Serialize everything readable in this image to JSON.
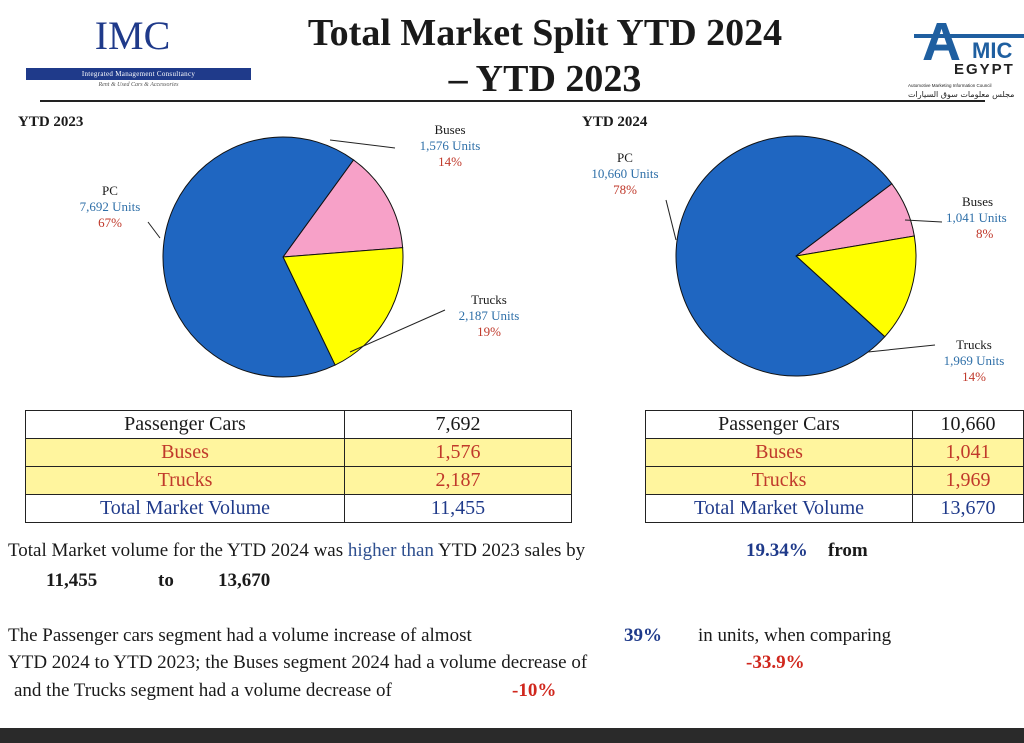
{
  "logo_imc": {
    "name": "IMC",
    "bar_text": "Integrated Management Consultancy",
    "tagline": "Rent & Used Cars & Accessories"
  },
  "logo_amic": {
    "letter": "A",
    "top": "MIC",
    "bottom": "EGYPT",
    "line1": "Automotive Marketing Information Council",
    "line2": "مجلس معلومات سوق السيارات",
    "color": "#1f5fa0"
  },
  "title": {
    "line1": "Total Market Split YTD 2024",
    "line2": "– YTD 2023"
  },
  "colors": {
    "pc": "#1f66c1",
    "buses": "#f7a1c8",
    "trucks": "#ffff00"
  },
  "chart_data": [
    {
      "type": "pie",
      "title": "YTD 2023",
      "slices": [
        {
          "category": "PC",
          "units_label": "7,692 Units",
          "value": 7692,
          "pct": "67%"
        },
        {
          "category": "Buses",
          "units_label": "1,576 Units",
          "value": 1576,
          "pct": "14%"
        },
        {
          "category": "Trucks",
          "units_label": "2,187 Units",
          "value": 2187,
          "pct": "19%"
        }
      ]
    },
    {
      "type": "pie",
      "title": "YTD 2024",
      "slices": [
        {
          "category": "PC",
          "units_label": "10,660 Units",
          "value": 10660,
          "pct": "78%"
        },
        {
          "category": "Buses",
          "units_label": "1,041 Units",
          "value": 1041,
          "pct": "8%"
        },
        {
          "category": "Trucks",
          "units_label": "1,969 Units",
          "value": 1969,
          "pct": "14%"
        }
      ]
    },
    {
      "type": "table",
      "rows": [
        {
          "label": "Passenger Cars",
          "value": "7,692"
        },
        {
          "label": "Buses",
          "value": "1,576"
        },
        {
          "label": "Trucks",
          "value": "2,187"
        },
        {
          "label": "Total Market Volume",
          "value": "11,455"
        }
      ]
    },
    {
      "type": "table",
      "rows": [
        {
          "label": "Passenger Cars",
          "value": "10,660"
        },
        {
          "label": "Buses",
          "value": "1,041"
        },
        {
          "label": "Trucks",
          "value": "1,969"
        },
        {
          "label": "Total Market Volume",
          "value": "13,670"
        }
      ]
    }
  ],
  "summary": {
    "line1_a": "Total Market volume for the YTD 2024 was ",
    "line1_b": "higher than",
    "line1_c": " YTD 2023 sales by",
    "line1_pct": "19.34%",
    "line1_from": "from",
    "from_value": "11,455",
    "to_word": "to",
    "to_value": "13,670",
    "p2_a": "The Passenger cars segment had a volume increase of almost",
    "p2_pc_pct": "39%",
    "p2_b": "in units, when comparing",
    "p2_c": "YTD 2024 to YTD 2023; the Buses segment 2024  had a volume decrease of",
    "p2_bus_pct": "-33.9%",
    "p2_d": "and the Trucks segment had a volume decrease of",
    "p2_truck_pct": "-10%"
  }
}
